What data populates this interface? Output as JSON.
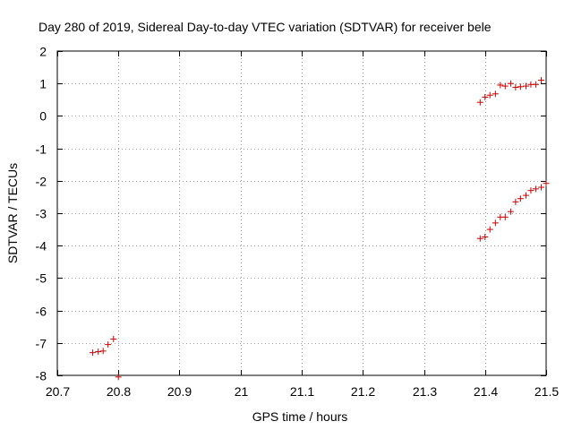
{
  "chart_data": {
    "type": "scatter",
    "title": "Day 280 of 2019, Sidereal Day-to-day VTEC variation (SDTVAR) for receiver bele",
    "xlabel": "GPS time / hours",
    "ylabel": "SDTVAR / TECUs",
    "xlim": [
      20.7,
      21.5
    ],
    "ylim": [
      -8,
      2
    ],
    "grid": true,
    "xticks": [
      20.7,
      20.8,
      20.9,
      21.0,
      21.1,
      21.2,
      21.3,
      21.4,
      21.5
    ],
    "xtick_labels": [
      "20.7",
      "20.8",
      "20.9",
      "21",
      "21.1",
      "21.2",
      "21.3",
      "21.4",
      "21.5"
    ],
    "yticks": [
      2,
      1,
      0,
      -1,
      -2,
      -3,
      -4,
      -5,
      -6,
      -7,
      -8
    ],
    "ytick_labels": [
      "2",
      "1",
      "0",
      "-1",
      "-2",
      "-3",
      "-4",
      "-5",
      "-6",
      "-7",
      "-8"
    ],
    "marker": "+",
    "marker_color": "#cc0000",
    "series": [
      {
        "name": "points",
        "points": [
          [
            20.758,
            -7.3
          ],
          [
            20.767,
            -7.27
          ],
          [
            20.775,
            -7.25
          ],
          [
            20.783,
            -7.05
          ],
          [
            20.792,
            -6.88
          ],
          [
            20.8,
            -8.05
          ],
          [
            21.392,
            0.42
          ],
          [
            21.4,
            0.58
          ],
          [
            21.408,
            0.64
          ],
          [
            21.417,
            0.68
          ],
          [
            21.425,
            0.95
          ],
          [
            21.433,
            0.92
          ],
          [
            21.442,
            1.0
          ],
          [
            21.45,
            0.88
          ],
          [
            21.458,
            0.9
          ],
          [
            21.467,
            0.92
          ],
          [
            21.475,
            0.97
          ],
          [
            21.483,
            0.97
          ],
          [
            21.492,
            1.1
          ],
          [
            21.392,
            -3.78
          ],
          [
            21.4,
            -3.73
          ],
          [
            21.408,
            -3.5
          ],
          [
            21.417,
            -3.3
          ],
          [
            21.425,
            -3.12
          ],
          [
            21.433,
            -3.12
          ],
          [
            21.442,
            -2.95
          ],
          [
            21.45,
            -2.65
          ],
          [
            21.458,
            -2.55
          ],
          [
            21.467,
            -2.45
          ],
          [
            21.475,
            -2.3
          ],
          [
            21.483,
            -2.25
          ],
          [
            21.492,
            -2.2
          ],
          [
            21.5,
            -2.08
          ]
        ]
      }
    ]
  }
}
